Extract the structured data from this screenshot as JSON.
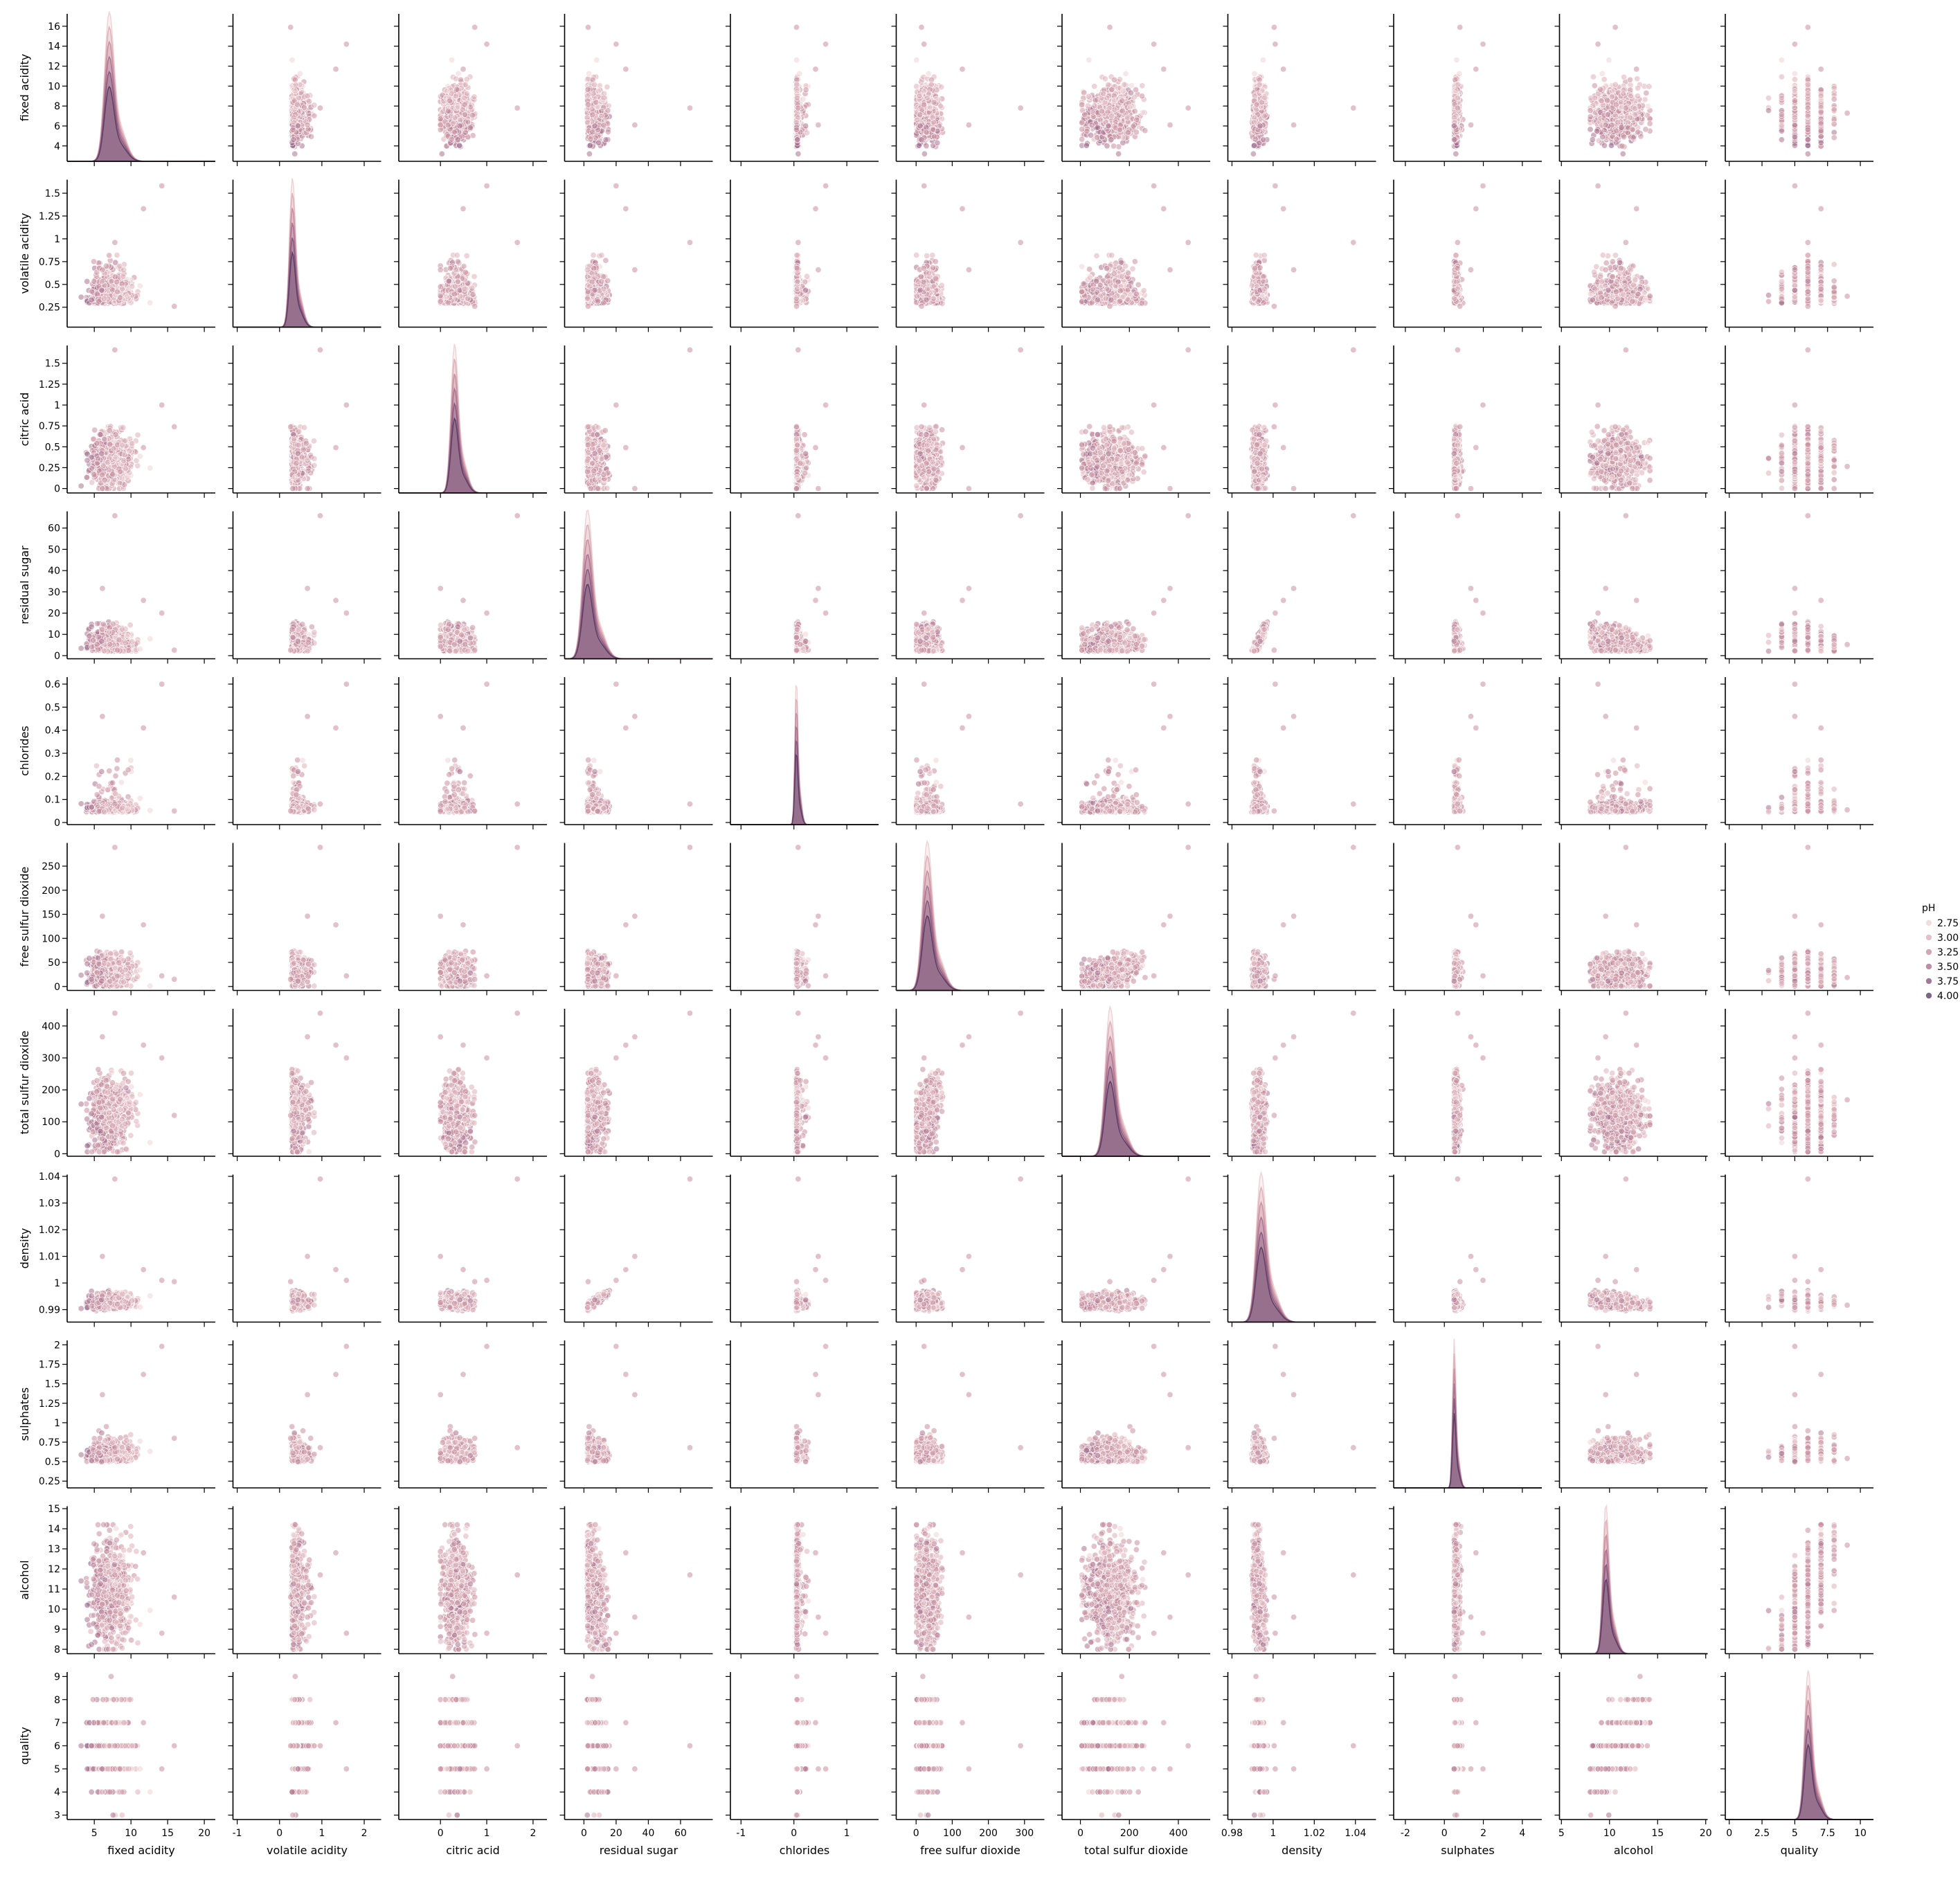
{
  "chart_data": {
    "type": "scatter",
    "variables": [
      {
        "name": "fixed acidity",
        "range": [
          2.9,
          16.8
        ],
        "xlim": [
          1.3,
          21.5
        ],
        "xticks": [
          5,
          10,
          15,
          20
        ],
        "yticks": [
          4,
          6,
          8,
          10,
          12,
          14,
          16
        ],
        "mode": 7.0
      },
      {
        "name": "volatile acidity",
        "range": [
          0.08,
          1.6
        ],
        "xlim": [
          -1.1,
          2.4
        ],
        "xticks": [
          -1,
          0,
          1,
          2
        ],
        "yticks": [
          0.25,
          0.5,
          0.75,
          1.0,
          1.25,
          1.5
        ],
        "mode": 0.3
      },
      {
        "name": "citric acid",
        "range": [
          0.0,
          1.66
        ],
        "xlim": [
          -0.9,
          2.3
        ],
        "xticks": [
          0,
          1,
          2
        ],
        "yticks": [
          0.0,
          0.25,
          0.5,
          0.75,
          1.0,
          1.25,
          1.5
        ],
        "mode": 0.3
      },
      {
        "name": "residual sugar",
        "range": [
          0.6,
          65.8
        ],
        "xlim": [
          -12,
          80
        ],
        "xticks": [
          0,
          20,
          40,
          60
        ],
        "yticks": [
          0,
          10,
          20,
          30,
          40,
          50,
          60
        ],
        "mode": 2.0
      },
      {
        "name": "chlorides",
        "range": [
          0.01,
          0.611
        ],
        "xlim": [
          -1.2,
          1.6
        ],
        "xticks": [
          -1,
          0,
          1
        ],
        "yticks": [
          0.0,
          0.1,
          0.2,
          0.3,
          0.4,
          0.5,
          0.6
        ],
        "mode": 0.045
      },
      {
        "name": "free sulfur dioxide",
        "range": [
          1,
          289
        ],
        "xlim": [
          -55,
          355
        ],
        "xticks": [
          0,
          100,
          200,
          300
        ],
        "yticks": [
          0,
          50,
          100,
          150,
          200,
          250,
          300
        ],
        "mode": 30
      },
      {
        "name": "total sulfur dioxide",
        "range": [
          6,
          440
        ],
        "xlim": [
          -75,
          530
        ],
        "xticks": [
          0,
          200,
          400
        ],
        "yticks": [
          0,
          100,
          200,
          300,
          400
        ],
        "mode": 120
      },
      {
        "name": "density",
        "range": [
          0.987,
          1.039
        ],
        "xlim": [
          0.978,
          1.05
        ],
        "xticks": [
          0.98,
          1.0,
          1.02,
          1.04
        ],
        "yticks": [
          0.99,
          1.0,
          1.01,
          1.02,
          1.03,
          1.04
        ],
        "mode": 0.994
      },
      {
        "name": "sulphates",
        "range": [
          0.22,
          2.0
        ],
        "xlim": [
          -2.6,
          5.0
        ],
        "xticks": [
          -2,
          0,
          2,
          4
        ],
        "yticks": [
          0.25,
          0.5,
          0.75,
          1.0,
          1.25,
          1.5,
          1.75,
          2.0
        ],
        "mode": 0.5
      },
      {
        "name": "alcohol",
        "range": [
          8.0,
          14.9
        ],
        "xlim": [
          4.8,
          20.2
        ],
        "xticks": [
          5,
          10,
          15,
          20
        ],
        "yticks": [
          8,
          9,
          10,
          11,
          12,
          13,
          14,
          15
        ],
        "mode": 9.6
      },
      {
        "name": "quality",
        "range": [
          3,
          9
        ],
        "xlim": [
          -0.3,
          11.0
        ],
        "xticks": [
          0.0,
          2.5,
          5.0,
          7.5,
          10.0
        ],
        "yticks": [
          3,
          4,
          5,
          6,
          7,
          8,
          9
        ],
        "mode": 6
      }
    ],
    "hue": {
      "name": "pH",
      "legend_entries": [
        "2.75",
        "3.00",
        "3.25",
        "3.50",
        "3.75",
        "4.00"
      ],
      "colors": [
        "#eed4d6",
        "#ddb1b9",
        "#c890a1",
        "#ab7390",
        "#87597f",
        "#5d3e65"
      ],
      "legend_position": "center-right"
    },
    "diagonal": "kde",
    "grid": false,
    "title": "",
    "markers": {
      "alpha": 0.55,
      "edge_color": "#ffffff"
    }
  }
}
